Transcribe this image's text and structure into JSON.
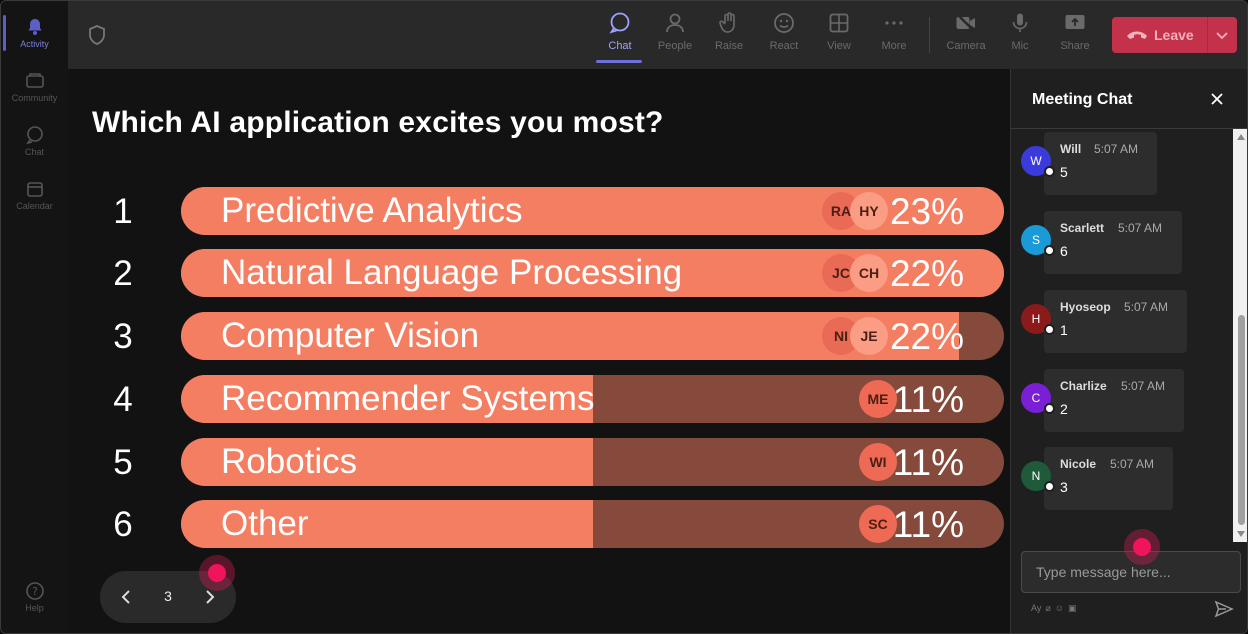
{
  "rail": {
    "items": [
      {
        "label": "Activity",
        "icon": "bell-icon"
      },
      {
        "label": "Community",
        "icon": "community-icon"
      },
      {
        "label": "Chat",
        "icon": "chat-icon"
      },
      {
        "label": "Calendar",
        "icon": "calendar-icon"
      }
    ],
    "help": "Help"
  },
  "toolbar": {
    "chat": "Chat",
    "people": "People",
    "raise": "Raise",
    "react": "React",
    "view": "View",
    "more": "More",
    "camera": "Camera",
    "mic": "Mic",
    "share": "Share",
    "leave": "Leave"
  },
  "poll": {
    "question": "Which AI application excites you most?",
    "rows": [
      {
        "num": "1",
        "label": "Predictive Analytics",
        "percent": "23%",
        "fill": 1.0,
        "avatars": [
          "RA",
          "HY"
        ]
      },
      {
        "num": "2",
        "label": "Natural Language Processing",
        "percent": "22%",
        "fill": 1.0,
        "avatars": [
          "JC",
          "CH"
        ]
      },
      {
        "num": "3",
        "label": "Computer Vision",
        "percent": "22%",
        "fill": 0.945,
        "avatars": [
          "NI",
          "JE"
        ]
      },
      {
        "num": "4",
        "label": "Recommender Systems",
        "percent": "11%",
        "fill": 0.5,
        "avatars": [
          "ME"
        ]
      },
      {
        "num": "5",
        "label": "Robotics",
        "percent": "11%",
        "fill": 0.5,
        "avatars": [
          "WI"
        ]
      },
      {
        "num": "6",
        "label": "Other",
        "percent": "11%",
        "fill": 0.5,
        "avatars": [
          "SC"
        ]
      }
    ],
    "colors": {
      "fill": "#f47e62",
      "track": "#854a3b"
    }
  },
  "pager": {
    "page": "3"
  },
  "chat": {
    "title": "Meeting Chat",
    "messages": [
      {
        "initial": "W",
        "name": "Will",
        "time": "5:07 AM",
        "text": "5",
        "color": "#3b3bdc"
      },
      {
        "initial": "S",
        "name": "Scarlett",
        "time": "5:07 AM",
        "text": "6",
        "color": "#1a9ad6"
      },
      {
        "initial": "H",
        "name": "Hyoseop",
        "time": "5:07 AM",
        "text": "1",
        "color": "#8b1a1a"
      },
      {
        "initial": "C",
        "name": "Charlize",
        "time": "5:07 AM",
        "text": "2",
        "color": "#7a1fd6"
      },
      {
        "initial": "N",
        "name": "Nicole",
        "time": "5:07 AM",
        "text": "3",
        "color": "#1f5a3a"
      }
    ],
    "input_placeholder": "Type message here..."
  }
}
